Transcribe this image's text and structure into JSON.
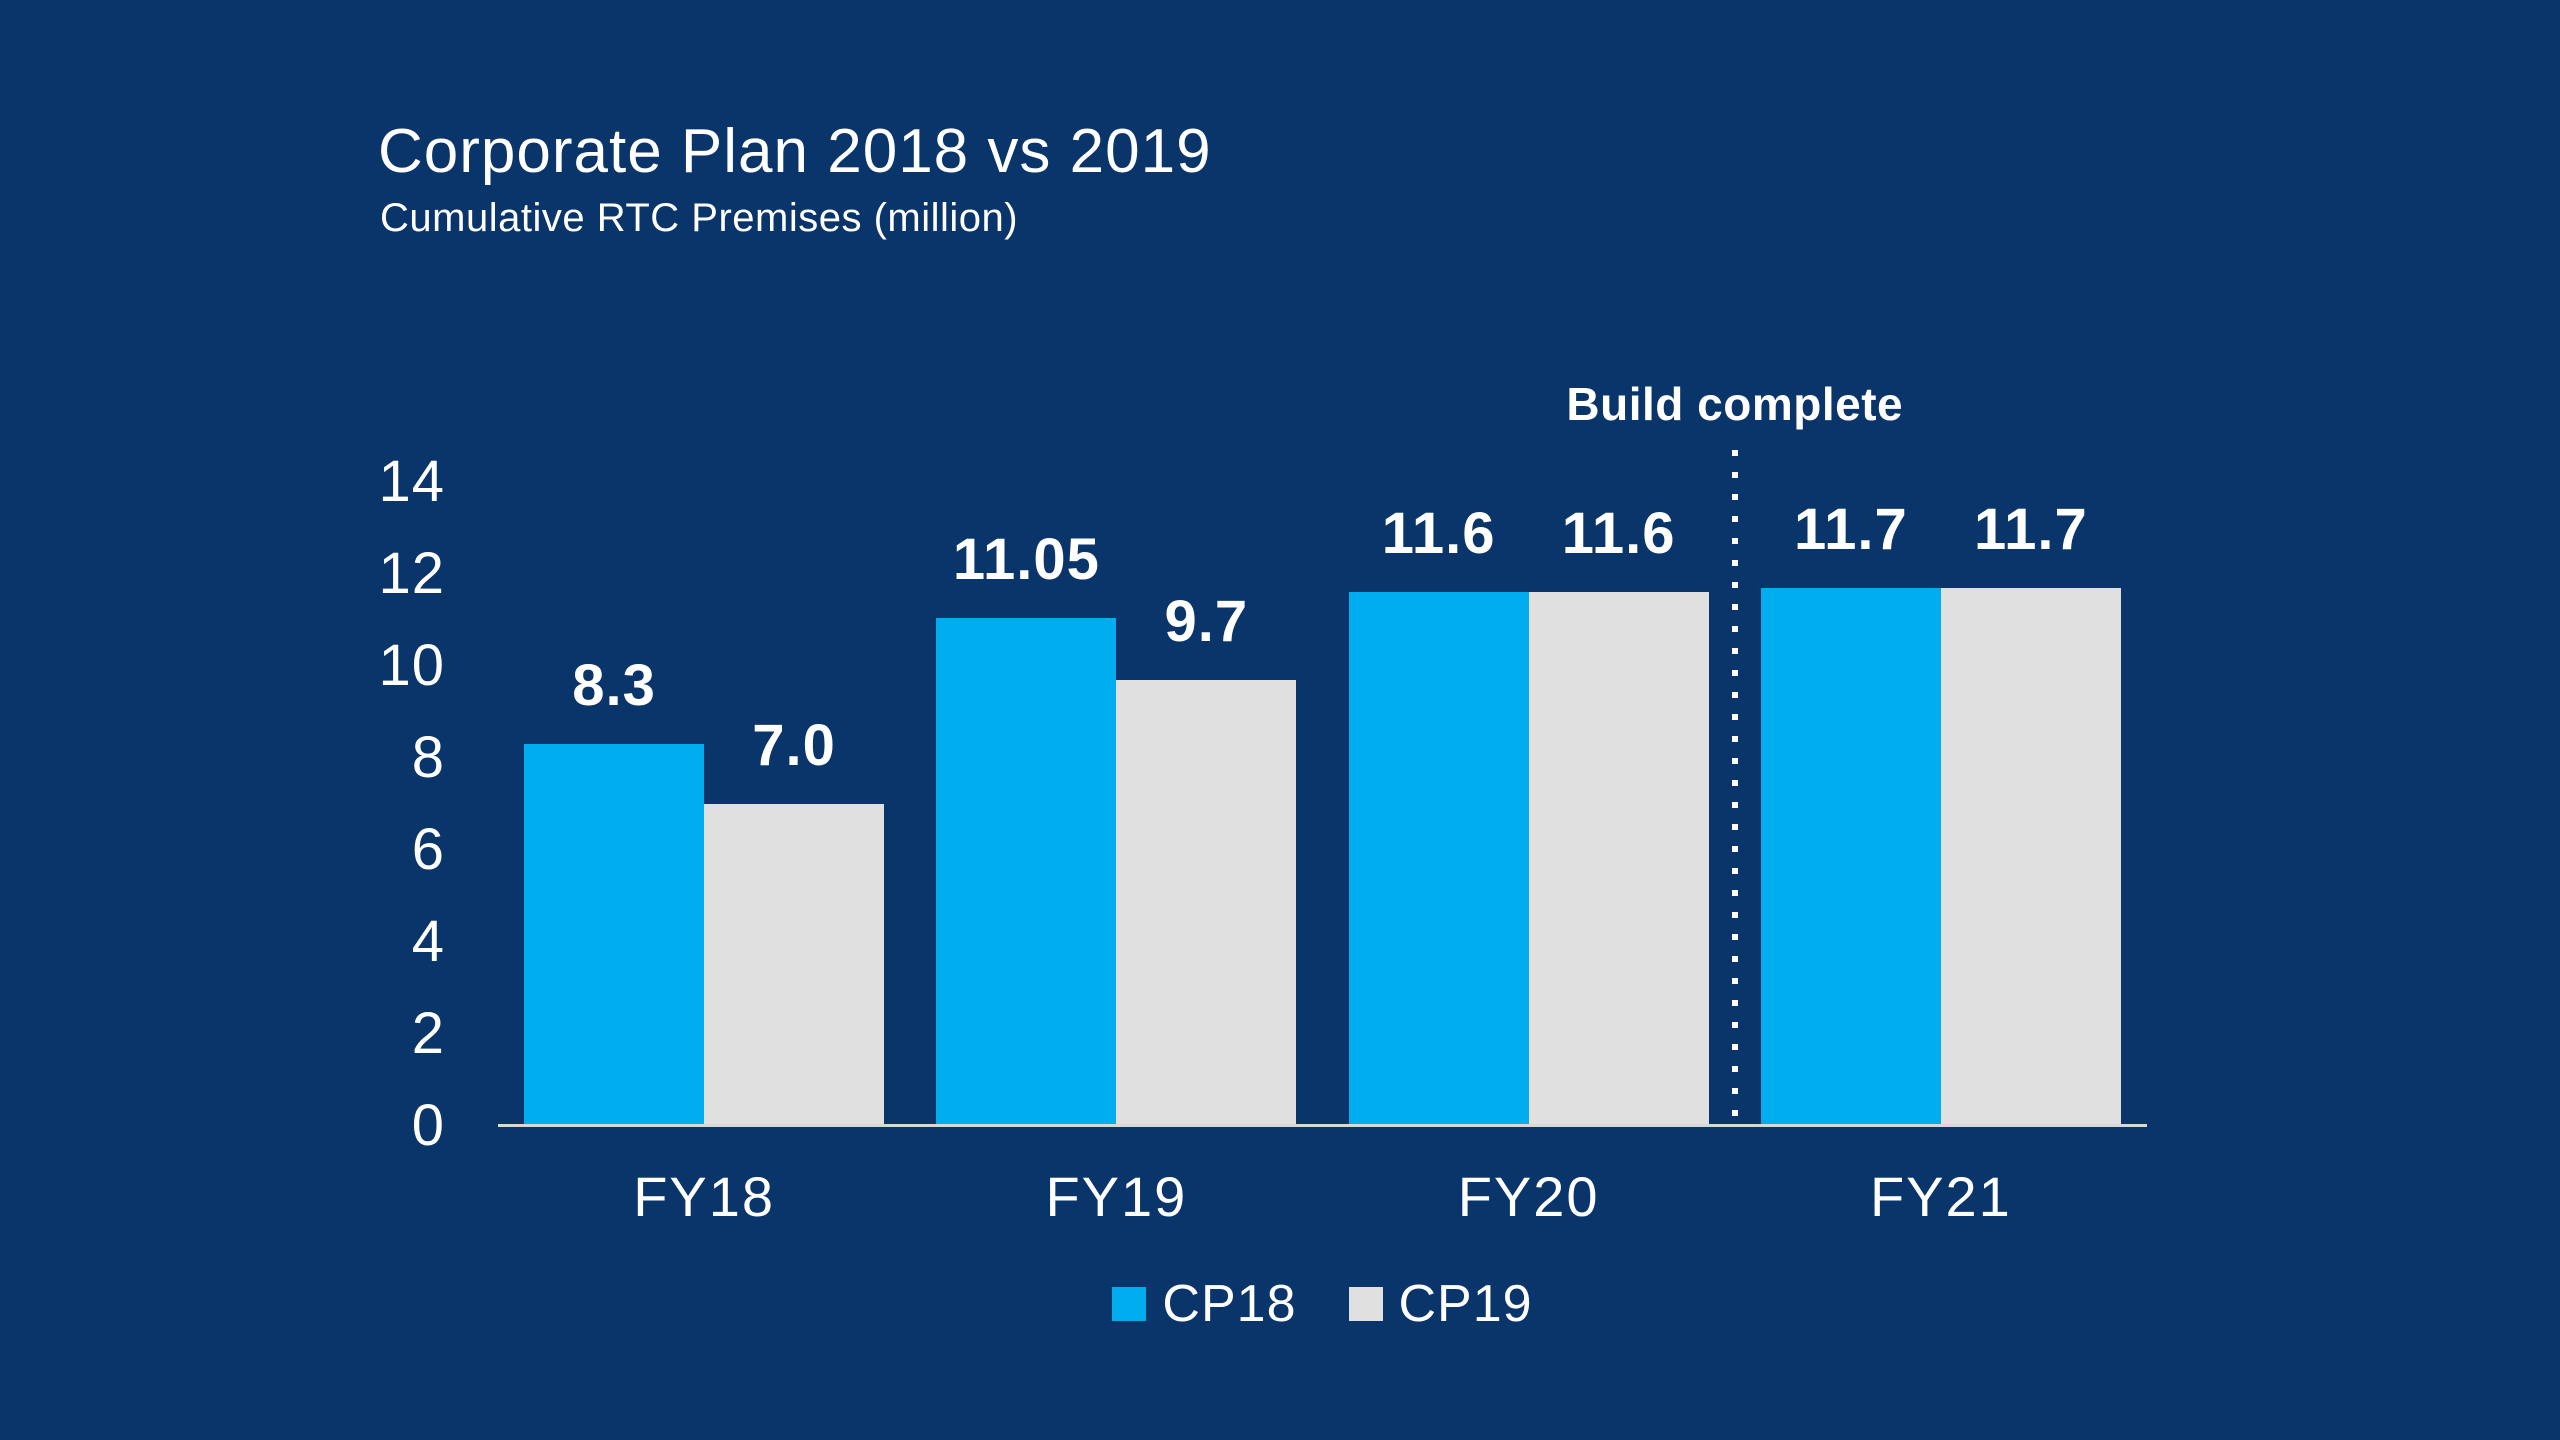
{
  "theme": {
    "background": "#0A356B",
    "text_color": "#FFFFFF",
    "axis_line_color": "#D8D8D8",
    "annotation_line_color": "#FFFFFF"
  },
  "chart_data": {
    "type": "bar",
    "title": "Corporate Plan 2018 vs 2019",
    "subtitle": "Cumulative RTC Premises (million)",
    "categories": [
      "FY18",
      "FY19",
      "FY20",
      "FY21"
    ],
    "series": [
      {
        "name": "CP18",
        "color": "#00AEEF",
        "values": [
          8.3,
          11.05,
          11.6,
          11.7
        ],
        "value_labels": [
          "8.3",
          "11.05",
          "11.6",
          "11.7"
        ]
      },
      {
        "name": "CP19",
        "color": "#E0E0E0",
        "values": [
          7.0,
          9.7,
          11.6,
          11.7
        ],
        "value_labels": [
          "7.0",
          "9.7",
          "11.6",
          "11.7"
        ]
      }
    ],
    "y_axis": {
      "min": 0,
      "max": 14,
      "tick_step": 2,
      "tick_labels": [
        "0",
        "2",
        "4",
        "6",
        "8",
        "10",
        "12",
        "14"
      ]
    },
    "ylim": [
      0,
      14
    ],
    "grid": false,
    "annotation": {
      "label": "Build complete",
      "line_style": "dotted-vertical",
      "between": [
        "FY20",
        "FY21"
      ]
    },
    "legend": {
      "position": "bottom-center",
      "entries": [
        {
          "label": "CP18",
          "color": "#00AEEF"
        },
        {
          "label": "CP19",
          "color": "#E0E0E0"
        }
      ]
    }
  }
}
